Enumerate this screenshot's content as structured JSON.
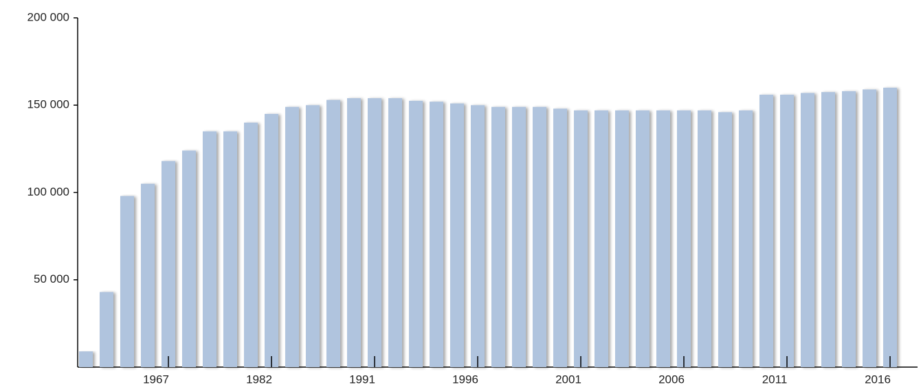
{
  "chart_data": {
    "type": "bar",
    "categories": [
      null,
      null,
      null,
      null,
      "1967",
      null,
      null,
      null,
      null,
      "1982",
      null,
      null,
      null,
      null,
      "1991",
      null,
      null,
      null,
      null,
      "1996",
      null,
      null,
      null,
      null,
      "2001",
      null,
      null,
      null,
      null,
      "2006",
      null,
      null,
      null,
      null,
      "2011",
      null,
      null,
      null,
      null,
      "2016"
    ],
    "values": [
      9000,
      43000,
      98000,
      105000,
      118000,
      124000,
      135000,
      135000,
      140000,
      145000,
      149000,
      150000,
      153000,
      154000,
      154000,
      154000,
      152500,
      152000,
      151000,
      150000,
      149000,
      149000,
      149000,
      148000,
      147000,
      147000,
      147000,
      147000,
      147000,
      147000,
      147000,
      146000,
      147000,
      156000,
      156000,
      157000,
      157500,
      158000,
      159000,
      160000
    ],
    "color": "#b0c4de",
    "ylim": [
      0,
      200000
    ],
    "yticks": [
      {
        "value": 50000,
        "label": "50 000"
      },
      {
        "value": 100000,
        "label": "100 000"
      },
      {
        "value": 150000,
        "label": "150 000"
      },
      {
        "value": 200000,
        "label": "200 000"
      }
    ],
    "grid": false
  }
}
